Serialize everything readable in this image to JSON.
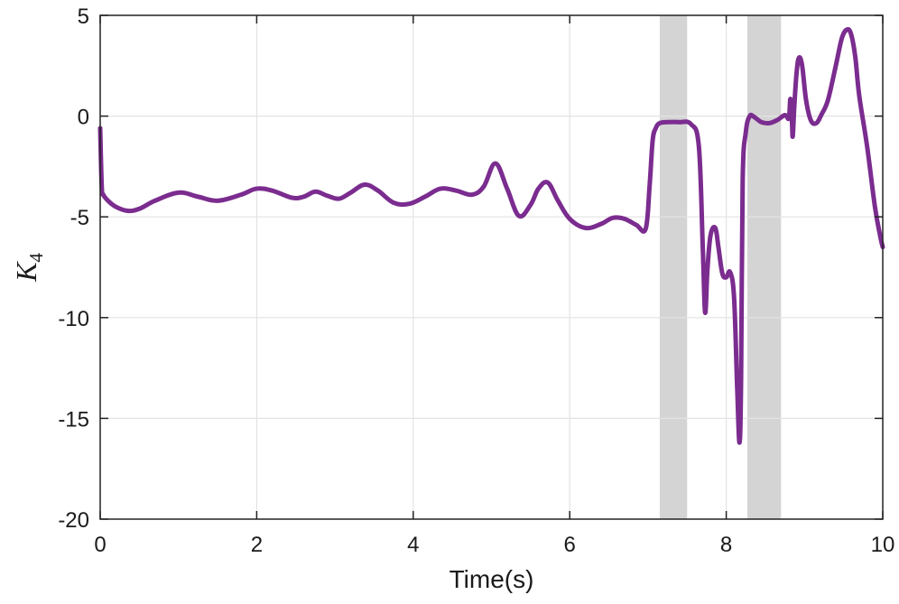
{
  "chart_data": {
    "type": "line",
    "title": "",
    "xlabel": "Time(s)",
    "ylabel": "K",
    "ylabel_subscript": "4",
    "xlim": [
      0,
      10
    ],
    "ylim": [
      -20,
      5
    ],
    "xticks": [
      0,
      2,
      4,
      6,
      8,
      10
    ],
    "xtick_labels": [
      "0",
      "2",
      "4",
      "6",
      "8",
      "10"
    ],
    "yticks": [
      5,
      0,
      -5,
      -10,
      -15,
      -20
    ],
    "ytick_labels": [
      "5",
      "0",
      "-5",
      "-10",
      "-15",
      "-20"
    ],
    "grid": true,
    "legend": "none",
    "shaded_intervals": [
      [
        7.15,
        7.5
      ],
      [
        8.27,
        8.7
      ]
    ],
    "colors": {
      "line": "#7b2c8f",
      "shade": "#d4d4d4",
      "grid": "#e3e3e3",
      "axis": "#222222"
    },
    "series": [
      {
        "x": [
          0.0,
          0.02,
          0.04,
          0.1,
          0.2,
          0.35,
          0.5,
          0.7,
          1.0,
          1.25,
          1.5,
          1.8,
          2.0,
          2.2,
          2.45,
          2.6,
          2.75,
          2.9,
          3.05,
          3.2,
          3.38,
          3.55,
          3.75,
          3.95,
          4.15,
          4.35,
          4.55,
          4.75,
          4.9,
          5.05,
          5.2,
          5.35,
          5.5,
          5.6,
          5.72,
          5.85,
          6.0,
          6.2,
          6.4,
          6.55,
          6.7,
          6.85,
          6.97,
          7.02,
          7.06,
          7.1,
          7.15,
          7.25,
          7.4,
          7.55,
          7.65,
          7.7,
          7.73,
          7.76,
          7.8,
          7.86,
          7.9,
          7.95,
          8.0,
          8.05,
          8.1,
          8.14,
          8.17,
          8.19,
          8.21,
          8.25,
          8.3,
          8.36,
          8.45,
          8.55,
          8.65,
          8.75,
          8.8,
          8.82,
          8.84,
          8.85,
          8.87,
          8.9,
          8.93,
          8.97,
          9.02,
          9.08,
          9.15,
          9.22,
          9.3,
          9.4,
          9.48,
          9.55,
          9.6,
          9.65,
          9.7,
          9.8,
          9.9,
          9.97,
          10.0
        ],
        "y": [
          -0.6,
          -3.5,
          -3.9,
          -4.2,
          -4.5,
          -4.7,
          -4.6,
          -4.2,
          -3.8,
          -4.0,
          -4.2,
          -3.9,
          -3.6,
          -3.7,
          -4.05,
          -4.0,
          -3.75,
          -3.95,
          -4.1,
          -3.8,
          -3.4,
          -3.7,
          -4.3,
          -4.35,
          -4.0,
          -3.6,
          -3.7,
          -3.9,
          -3.5,
          -2.35,
          -3.6,
          -4.95,
          -4.4,
          -3.6,
          -3.3,
          -4.2,
          -5.1,
          -5.55,
          -5.35,
          -5.05,
          -5.1,
          -5.4,
          -5.6,
          -3.5,
          -1.2,
          -0.6,
          -0.35,
          -0.3,
          -0.3,
          -0.4,
          -1.5,
          -6.5,
          -9.75,
          -7.6,
          -5.9,
          -5.55,
          -6.5,
          -7.8,
          -8.0,
          -7.75,
          -9.0,
          -13.5,
          -16.2,
          -13.0,
          -3.2,
          -0.8,
          0.0,
          -0.05,
          -0.3,
          -0.35,
          -0.2,
          0.05,
          -0.1,
          0.85,
          -0.3,
          -1.0,
          0.5,
          2.2,
          2.9,
          2.5,
          0.8,
          -0.2,
          -0.35,
          0.1,
          0.8,
          2.5,
          3.9,
          4.3,
          4.0,
          2.9,
          1.0,
          -1.5,
          -4.5,
          -6.0,
          -6.5
        ]
      }
    ]
  }
}
